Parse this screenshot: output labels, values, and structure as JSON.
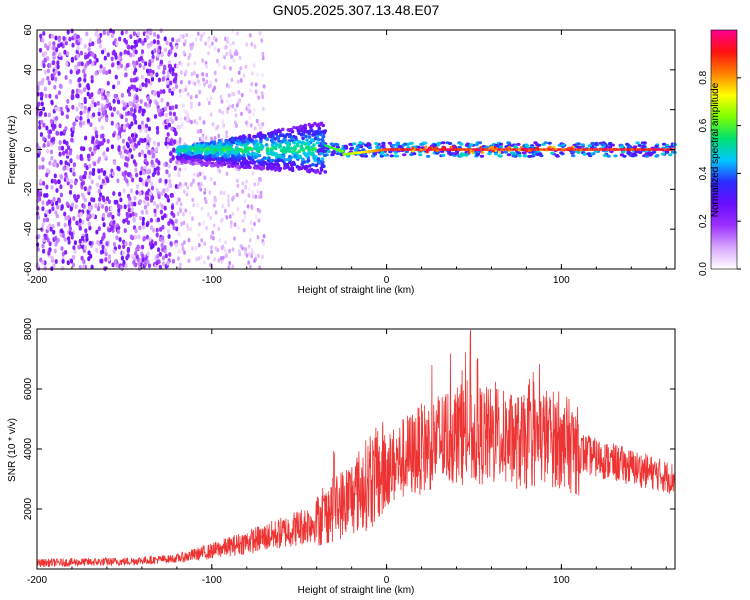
{
  "title": "GN05.2025.307.13.48.E07",
  "chart_data": [
    {
      "type": "heatmap",
      "name": "spectrogram",
      "xlabel": "Height of straight line (km)",
      "ylabel": "Frequency (Hz)",
      "xlim": [
        -200,
        165
      ],
      "ylim": [
        -60,
        60
      ],
      "x_ticks": [
        -200,
        -100,
        0,
        100
      ],
      "y_ticks": [
        -60,
        -40,
        -20,
        0,
        20,
        40,
        60
      ],
      "colorbar": {
        "label": "Normalized spectral amplitude",
        "range": [
          0,
          1
        ],
        "ticks": [
          0.0,
          0.2,
          0.4,
          0.6,
          0.8
        ],
        "colors": [
          "#ffffff",
          "#d9a6ff",
          "#9b30ff",
          "#6a0dff",
          "#2a2cff",
          "#00c8ff",
          "#00e070",
          "#7cff00",
          "#ffff00",
          "#ff8000",
          "#ff1010",
          "#ff0090"
        ]
      },
      "regions": [
        {
          "x_range": [
            -200,
            -120
          ],
          "freq_spread": 60,
          "amplitude": [
            0.05,
            0.25
          ]
        },
        {
          "x_range": [
            -120,
            -70
          ],
          "freq_spread": 60,
          "amplitude": [
            0.02,
            0.12
          ]
        },
        {
          "x_range": [
            -120,
            -35
          ],
          "freq_center": [
            -5,
            5
          ],
          "freq_spread": 12,
          "amplitude": [
            0.3,
            0.5
          ]
        },
        {
          "x_range": [
            -35,
            0
          ],
          "freq_center": [
            0,
            -3
          ],
          "freq_spread": 3,
          "amplitude": [
            0.6,
            0.8
          ]
        },
        {
          "x_range": [
            0,
            165
          ],
          "freq_center": [
            0,
            0
          ],
          "freq_spread": 2,
          "amplitude": [
            0.8,
            1.0
          ]
        }
      ]
    },
    {
      "type": "line",
      "name": "snr",
      "xlabel": "Height of straight line (km)",
      "ylabel": "SNR (10 * v/v)",
      "xlim": [
        -200,
        165
      ],
      "ylim": [
        0,
        8000
      ],
      "x_ticks": [
        -200,
        -100,
        0,
        100
      ],
      "y_ticks": [
        2000,
        4000,
        6000,
        8000
      ],
      "color": "#ee3333",
      "envelope": [
        {
          "x": -200,
          "y": 200
        },
        {
          "x": -150,
          "y": 250
        },
        {
          "x": -120,
          "y": 350
        },
        {
          "x": -100,
          "y": 600
        },
        {
          "x": -80,
          "y": 900
        },
        {
          "x": -60,
          "y": 1200
        },
        {
          "x": -40,
          "y": 1600
        },
        {
          "x": -30,
          "y": 2000
        },
        {
          "x": -20,
          "y": 2400
        },
        {
          "x": -10,
          "y": 2900
        },
        {
          "x": 0,
          "y": 3300
        },
        {
          "x": 10,
          "y": 3700
        },
        {
          "x": 20,
          "y": 4000
        },
        {
          "x": 30,
          "y": 4300
        },
        {
          "x": 40,
          "y": 4500
        },
        {
          "x": 50,
          "y": 4500
        },
        {
          "x": 60,
          "y": 4400
        },
        {
          "x": 70,
          "y": 4300
        },
        {
          "x": 80,
          "y": 4200
        },
        {
          "x": 90,
          "y": 4400
        },
        {
          "x": 100,
          "y": 4300
        },
        {
          "x": 110,
          "y": 3900
        },
        {
          "x": 120,
          "y": 3700
        },
        {
          "x": 140,
          "y": 3400
        },
        {
          "x": 165,
          "y": 3000
        }
      ],
      "spikes": [
        {
          "x": -30,
          "y": 4100
        },
        {
          "x": 30,
          "y": 5700
        },
        {
          "x": 43,
          "y": 6700
        },
        {
          "x": 48,
          "y": 8000
        },
        {
          "x": 52,
          "y": 7200
        },
        {
          "x": 63,
          "y": 5200
        },
        {
          "x": 93,
          "y": 5400
        },
        {
          "x": 100,
          "y": 5000
        },
        {
          "x": 108,
          "y": 4200
        }
      ]
    }
  ]
}
